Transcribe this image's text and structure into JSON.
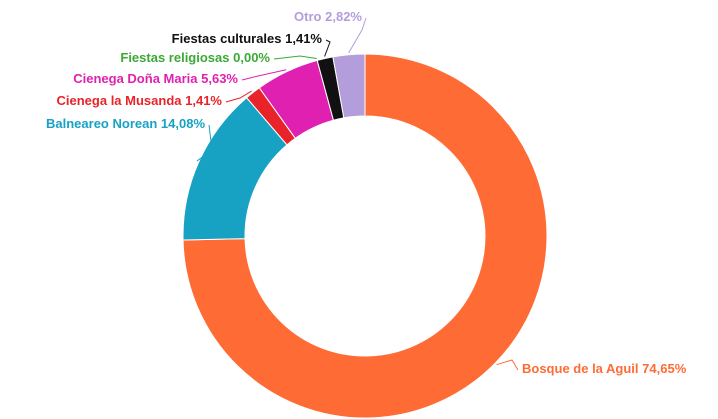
{
  "chart_data": {
    "type": "pie",
    "categories": [
      "Bosque de la Aguil",
      "Balneareo Norean",
      "Cienega la Musanda",
      "Cienega Doña Maria",
      "Fiestas religiosas",
      "Fiestas culturales",
      "Otro"
    ],
    "values": [
      74.65,
      14.08,
      1.41,
      5.63,
      0,
      1.41,
      2.82
    ],
    "value_labels": [
      "74,65%",
      "14,08%",
      "1,41%",
      "5,63%",
      "0,00%",
      "1,41%",
      "2,82%"
    ],
    "colors": [
      "#ff6b35",
      "#17a2c4",
      "#e8232a",
      "#e020b0",
      "#3aaa35",
      "#111111",
      "#b39ddb"
    ]
  }
}
